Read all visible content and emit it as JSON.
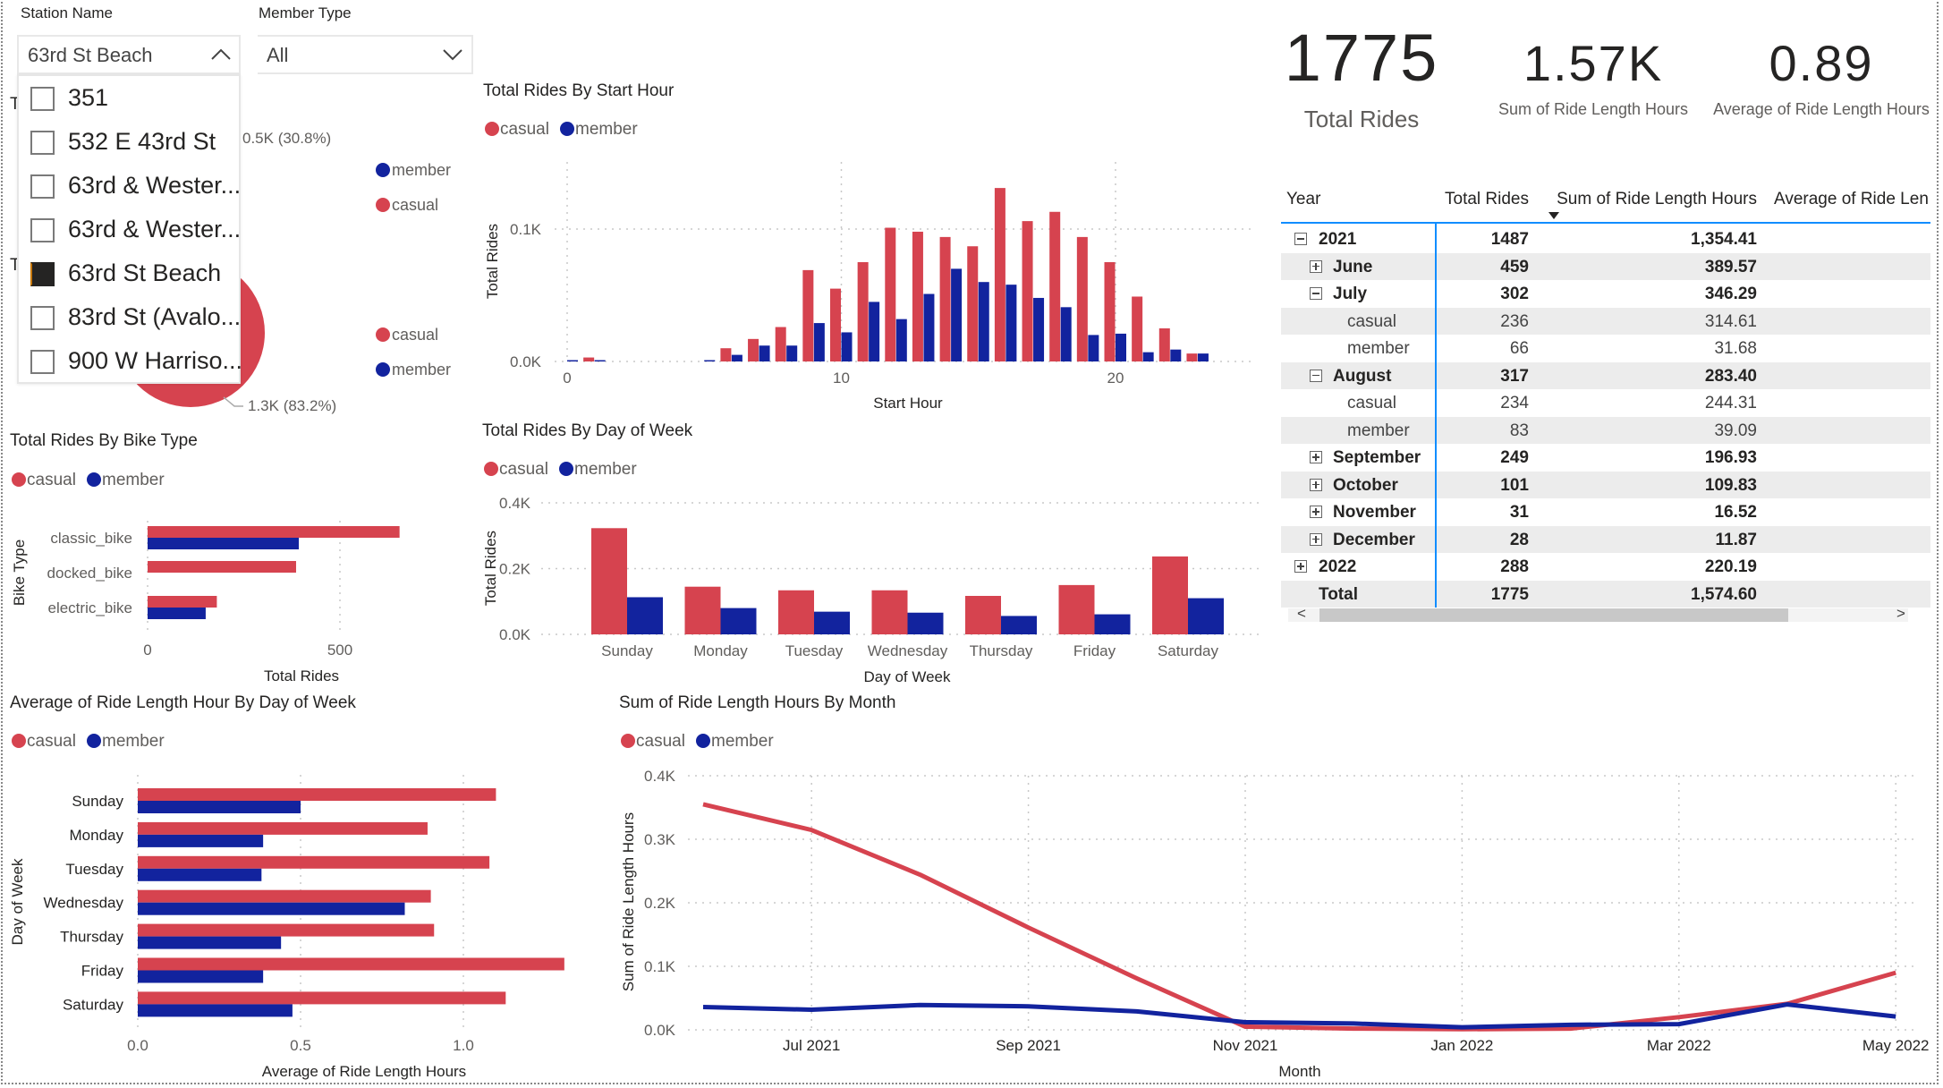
{
  "colors": {
    "casual": "#D6434F",
    "member": "#12239E",
    "text": "#252423",
    "muted": "#605E5C",
    "accent_line": "#118DFF"
  },
  "slicers": {
    "station": {
      "label": "Station Name",
      "selected": "63rd St Beach",
      "expanded": true,
      "icon": "chevron-up-icon",
      "options": [
        {
          "label": "351",
          "checked": false
        },
        {
          "label": "532 E 43rd St",
          "checked": false
        },
        {
          "label": "63rd & Wester...",
          "checked": false
        },
        {
          "label": "63rd & Wester...",
          "checked": false
        },
        {
          "label": "63rd St Beach",
          "checked": true
        },
        {
          "label": "83rd St (Avalo...",
          "checked": false
        },
        {
          "label": "900 W Harriso...",
          "checked": false
        }
      ]
    },
    "member_type": {
      "label": "Member Type",
      "selected": "All",
      "icon": "chevron-down-icon"
    }
  },
  "pie_charts": [
    {
      "title_fragment": "T",
      "data_label": "0.5K (30.8%)",
      "legend": [
        "member",
        "casual"
      ]
    },
    {
      "title_fragment": "T",
      "data_label": "1.3K (83.2%)",
      "legend": [
        "casual",
        "member"
      ]
    }
  ],
  "kpis": [
    {
      "value": "1775",
      "label": "Total Rides"
    },
    {
      "value": "1.57K",
      "label": "Sum of Ride Length Hours"
    },
    {
      "value": "0.89",
      "label": "Average of Ride Length Hours"
    }
  ],
  "matrix": {
    "headers": [
      "Year",
      "Total Rides",
      "Sum of Ride Length Hours",
      "Average of Ride Len"
    ],
    "sorted_column": "Sum of Ride Length Hours",
    "rows": [
      {
        "label": "2021",
        "level": 0,
        "toggle": "minus",
        "rides": "1487",
        "hours": "1,354.41",
        "bold": true
      },
      {
        "label": "June",
        "level": 1,
        "toggle": "plus",
        "rides": "459",
        "hours": "389.57",
        "bold": true
      },
      {
        "label": "July",
        "level": 1,
        "toggle": "minus",
        "rides": "302",
        "hours": "346.29",
        "bold": true
      },
      {
        "label": "casual",
        "level": 2,
        "toggle": null,
        "rides": "236",
        "hours": "314.61",
        "bold": false
      },
      {
        "label": "member",
        "level": 2,
        "toggle": null,
        "rides": "66",
        "hours": "31.68",
        "bold": false
      },
      {
        "label": "August",
        "level": 1,
        "toggle": "minus",
        "rides": "317",
        "hours": "283.40",
        "bold": true
      },
      {
        "label": "casual",
        "level": 2,
        "toggle": null,
        "rides": "234",
        "hours": "244.31",
        "bold": false
      },
      {
        "label": "member",
        "level": 2,
        "toggle": null,
        "rides": "83",
        "hours": "39.09",
        "bold": false
      },
      {
        "label": "September",
        "level": 1,
        "toggle": "plus",
        "rides": "249",
        "hours": "196.93",
        "bold": true
      },
      {
        "label": "October",
        "level": 1,
        "toggle": "plus",
        "rides": "101",
        "hours": "109.83",
        "bold": true
      },
      {
        "label": "November",
        "level": 1,
        "toggle": "plus",
        "rides": "31",
        "hours": "16.52",
        "bold": true
      },
      {
        "label": "December",
        "level": 1,
        "toggle": "plus",
        "rides": "28",
        "hours": "11.87",
        "bold": true
      },
      {
        "label": "2022",
        "level": 0,
        "toggle": "plus",
        "rides": "288",
        "hours": "220.19",
        "bold": true
      },
      {
        "label": "Total",
        "level": 0,
        "toggle": null,
        "rides": "1775",
        "hours": "1,574.60",
        "bold": true
      }
    ],
    "scroll": {
      "left_arrow": "<",
      "right_arrow": ">"
    }
  },
  "chart_data": [
    {
      "type": "bar",
      "title": "Total Rides By Start Hour",
      "xlabel": "Start Hour",
      "ylabel": "Total Rides",
      "categories": [
        0,
        1,
        2,
        3,
        4,
        5,
        6,
        7,
        8,
        9,
        10,
        11,
        12,
        13,
        14,
        15,
        16,
        17,
        18,
        19,
        20,
        21,
        22,
        23
      ],
      "x_ticks": [
        "0",
        "10",
        "20"
      ],
      "y_ticks": [
        "0.0K",
        "0.1K"
      ],
      "y_tick_values": [
        0,
        100
      ],
      "grid": true,
      "legend": "top-left",
      "series": [
        {
          "name": "casual",
          "values": [
            0,
            3,
            0,
            0,
            0,
            0,
            10,
            17,
            26,
            69,
            55,
            75,
            101,
            98,
            94,
            87,
            131,
            106,
            113,
            94,
            75,
            49,
            25,
            6
          ]
        },
        {
          "name": "member",
          "values": [
            1,
            1,
            0,
            0,
            0,
            1,
            5,
            12,
            12,
            29,
            22,
            45,
            32,
            51,
            70,
            60,
            58,
            48,
            41,
            20,
            21,
            7,
            9,
            6
          ]
        }
      ]
    },
    {
      "type": "bar",
      "title": "Total Rides By Day of Week",
      "xlabel": "Day of Week",
      "ylabel": "Total Rides",
      "categories": [
        "Sunday",
        "Monday",
        "Tuesday",
        "Wednesday",
        "Thursday",
        "Friday",
        "Saturday"
      ],
      "y_ticks": [
        "0.0K",
        "0.2K",
        "0.4K"
      ],
      "y_tick_values": [
        0,
        200,
        400
      ],
      "grid": true,
      "legend": "top-left",
      "series": [
        {
          "name": "casual",
          "values": [
            323,
            145,
            134,
            134,
            117,
            150,
            237
          ]
        },
        {
          "name": "member",
          "values": [
            113,
            80,
            69,
            66,
            56,
            61,
            110
          ]
        }
      ]
    },
    {
      "type": "bar",
      "orientation": "horizontal",
      "title": "Total Rides By Bike Type",
      "xlabel": "Total Rides",
      "ylabel": "Bike Type",
      "categories": [
        "classic_bike",
        "docked_bike",
        "electric_bike"
      ],
      "x_ticks": [
        "0",
        "500"
      ],
      "x_tick_values": [
        0,
        500
      ],
      "grid": true,
      "legend": "top-left",
      "series": [
        {
          "name": "casual",
          "values": [
            655,
            386,
            180
          ]
        },
        {
          "name": "member",
          "values": [
            393,
            null,
            151
          ]
        }
      ]
    },
    {
      "type": "bar",
      "orientation": "horizontal",
      "title": "Average of Ride Length Hour By Day of Week",
      "xlabel": "Average of Ride Length Hours",
      "ylabel": "Day of Week",
      "categories": [
        "Sunday",
        "Monday",
        "Tuesday",
        "Wednesday",
        "Thursday",
        "Friday",
        "Saturday"
      ],
      "x_ticks": [
        "0.0",
        "0.5",
        "1.0"
      ],
      "x_tick_values": [
        0,
        0.5,
        1.0
      ],
      "grid": true,
      "legend": "top-left",
      "series": [
        {
          "name": "casual",
          "values": [
            1.1,
            0.89,
            1.08,
            0.9,
            0.91,
            1.31,
            1.13
          ]
        },
        {
          "name": "member",
          "values": [
            0.5,
            0.385,
            0.38,
            0.82,
            0.44,
            0.385,
            0.475
          ]
        }
      ]
    },
    {
      "type": "line",
      "title": "Sum of Ride Length Hours By Month",
      "xlabel": "Month",
      "ylabel": "Sum of Ride Length Hours",
      "x": [
        "Jun 2021",
        "Jul 2021",
        "Aug 2021",
        "Sep 2021",
        "Oct 2021",
        "Nov 2021",
        "Dec 2021",
        "Jan 2022",
        "Feb 2022",
        "Mar 2022",
        "Apr 2022",
        "May 2022"
      ],
      "x_ticks": [
        "Jul 2021",
        "Sep 2021",
        "Nov 2021",
        "Jan 2022",
        "Mar 2022",
        "May 2022"
      ],
      "y_ticks": [
        "0.0K",
        "0.1K",
        "0.2K",
        "0.3K",
        "0.4K"
      ],
      "y_tick_values": [
        0,
        100,
        200,
        300,
        400
      ],
      "grid": true,
      "legend": "top-left",
      "series": [
        {
          "name": "casual",
          "values": [
            355,
            314.61,
            244.31,
            161,
            81,
            5,
            2,
            1,
            2,
            20,
            41,
            90
          ]
        },
        {
          "name": "member",
          "values": [
            36,
            31.68,
            39.09,
            37,
            29,
            12,
            10,
            4,
            8,
            9,
            40,
            21
          ]
        }
      ]
    }
  ]
}
